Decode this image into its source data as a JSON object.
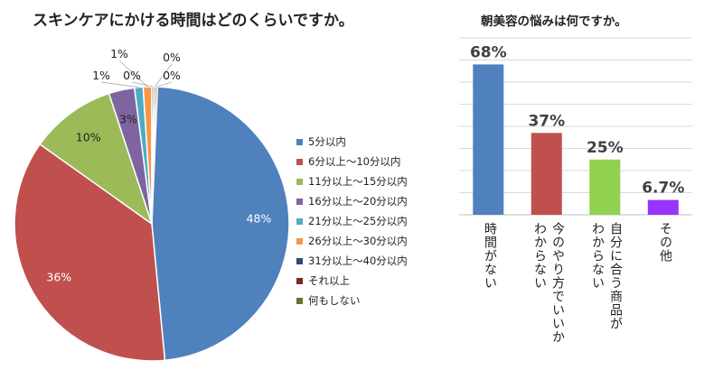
{
  "chart_data": [
    {
      "type": "pie",
      "title": "スキンケアにかける時間はどのくらいですか。",
      "slices": [
        {
          "label": "5分以内",
          "value": 48,
          "value_label": "48%",
          "color": "#4f81bd"
        },
        {
          "label": "6分以上～10分以内",
          "value": 36,
          "value_label": "36%",
          "color": "#c0504d"
        },
        {
          "label": "11分以上～15分以内",
          "value": 10,
          "value_label": "10%",
          "color": "#9bbb59"
        },
        {
          "label": "16分以上～20分以内",
          "value": 3,
          "value_label": "3%",
          "color": "#8064a2"
        },
        {
          "label": "21分以上～25分以内",
          "value": 1,
          "value_label": "1%",
          "color": "#4bacc6"
        },
        {
          "label": "26分以上～30分以内",
          "value": 1,
          "value_label": "1%",
          "color": "#f79646"
        },
        {
          "label": "31分以上～40分以内",
          "value": 0,
          "value_label": "0%",
          "color": "#2c4d75"
        },
        {
          "label": "それ以上",
          "value": 0,
          "value_label": "0%",
          "color": "#772c2a"
        },
        {
          "label": "何もしない",
          "value": 0,
          "value_label": "0%",
          "color": "#5f7530"
        }
      ],
      "legend": "right"
    },
    {
      "type": "bar",
      "title": "朝美容の悩みは何ですか。",
      "categories": [
        [
          "時間がない"
        ],
        [
          "今のやり方でいいか",
          "わからない"
        ],
        [
          "自分に合う商品が",
          "わからない"
        ],
        [
          "その他"
        ]
      ],
      "values": [
        68,
        37,
        25,
        6.7
      ],
      "value_labels": [
        "68%",
        "37%",
        "25%",
        "6.7%"
      ],
      "colors": [
        "#4f81bd",
        "#c0504d",
        "#92d050",
        "#9933ff"
      ],
      "ylim": [
        0,
        80
      ],
      "grid": true
    }
  ]
}
